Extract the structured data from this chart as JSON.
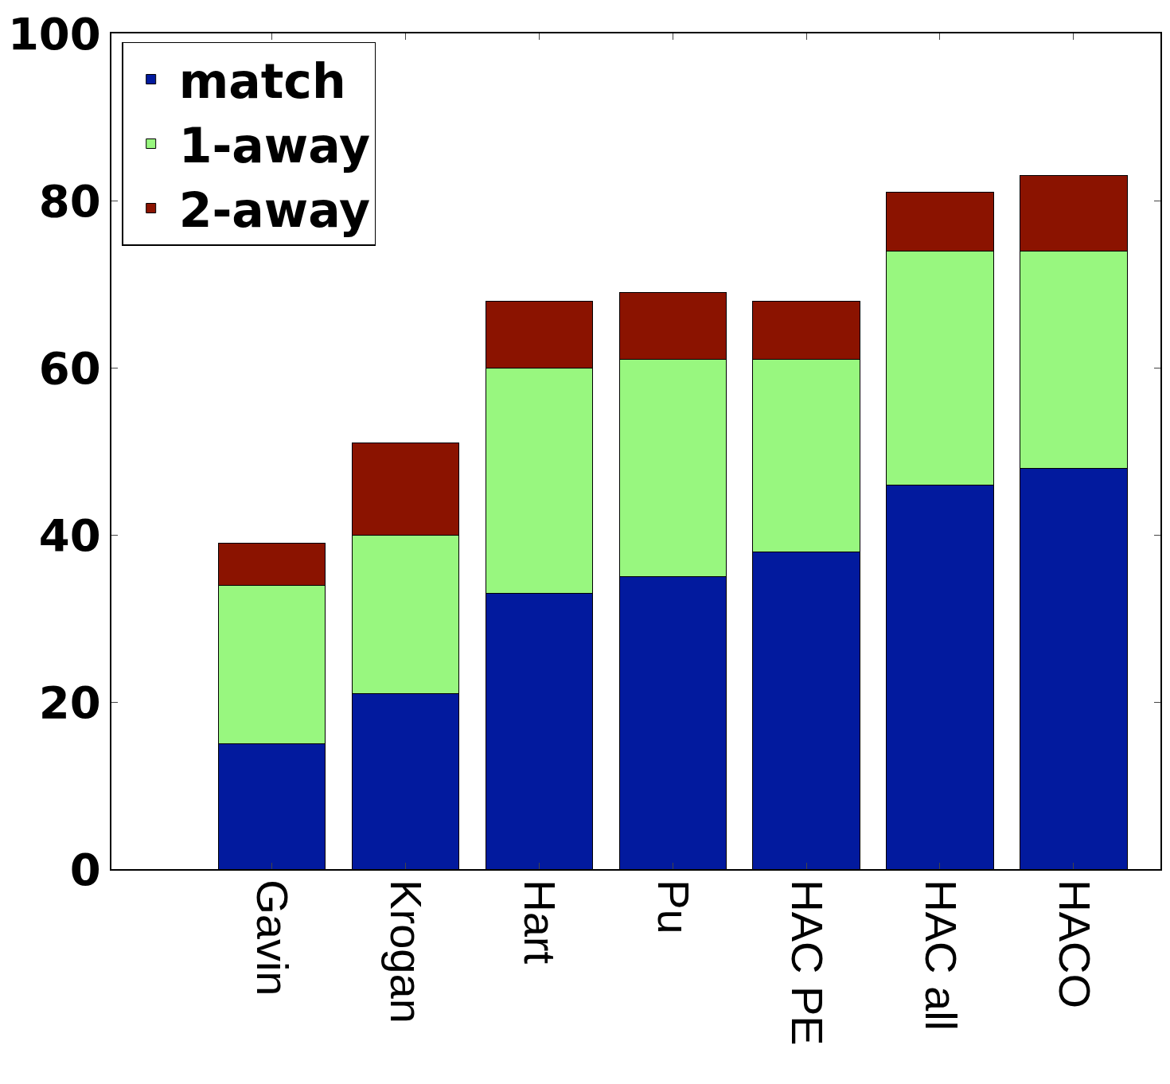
{
  "chart_data": {
    "type": "bar",
    "stacked": true,
    "categories": [
      "Gavin",
      "Krogan",
      "Hart",
      "Pu",
      "HAC PE",
      "HAC all",
      "HACO"
    ],
    "series": [
      {
        "name": "match",
        "color": "#021a9e",
        "values": [
          15,
          21,
          33,
          35,
          38,
          46,
          48
        ]
      },
      {
        "name": "1-away",
        "color": "#98f77f",
        "values": [
          19,
          19,
          27,
          26,
          23,
          28,
          26
        ]
      },
      {
        "name": "2-away",
        "color": "#8b1300",
        "values": [
          5,
          11,
          8,
          8,
          7,
          7,
          9
        ]
      }
    ],
    "ylim": [
      0,
      100
    ],
    "yticks": [
      0,
      20,
      40,
      60,
      80,
      100
    ],
    "legend": "top left"
  }
}
